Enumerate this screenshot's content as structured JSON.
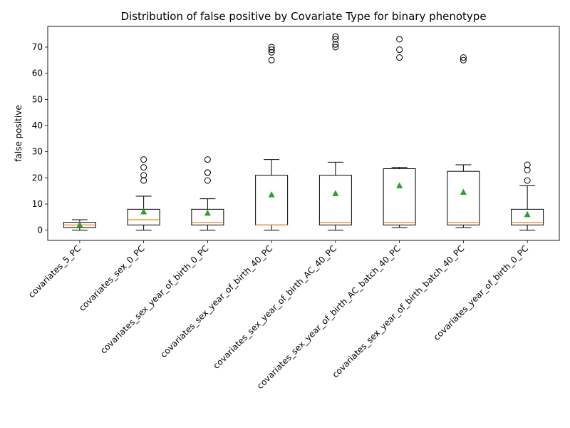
{
  "chart_data": {
    "type": "box",
    "title": "Distribution of false positive by Covariate Type for binary phenotype",
    "xlabel": "",
    "ylabel": "false positive",
    "ylim": [
      -3.9,
      77.9
    ],
    "yticks": [
      0,
      10,
      20,
      30,
      40,
      50,
      60,
      70
    ],
    "grid": false,
    "colors": {
      "box": "#000000",
      "median": "#ff7f0e",
      "mean": "#2ca02c",
      "flier": "#000000"
    },
    "categories": [
      "covariates_5_PC",
      "covariates_sex_0_PC",
      "covariates_sex_year_of_birth_0_PC",
      "covariates_sex_year_of_birth_40_PC",
      "covariates_sex_year_of_birth_AC_40_PC",
      "covariates_sex_year_of_birth_AC_batch_40_PC",
      "covariates_sex_year_of_birth_batch_40_PC",
      "covariates_year_of_birth_0_PC"
    ],
    "boxes": [
      {
        "whisker_low": 0,
        "q1": 1,
        "median": 2,
        "q3": 3,
        "whisker_high": 4,
        "mean": 2,
        "fliers": []
      },
      {
        "whisker_low": 0,
        "q1": 2,
        "median": 4,
        "q3": 8,
        "whisker_high": 13,
        "mean": 7,
        "fliers": [
          19,
          21,
          24,
          27
        ]
      },
      {
        "whisker_low": 0,
        "q1": 2,
        "median": 3,
        "q3": 8,
        "whisker_high": 12,
        "mean": 6.5,
        "fliers": [
          19,
          22,
          22,
          27
        ]
      },
      {
        "whisker_low": 0,
        "q1": 2,
        "median": 2,
        "q3": 21,
        "whisker_high": 27,
        "mean": 13.5,
        "fliers": [
          65,
          68,
          69,
          70
        ]
      },
      {
        "whisker_low": 0,
        "q1": 2,
        "median": 3,
        "q3": 21,
        "whisker_high": 26,
        "mean": 14,
        "fliers": [
          70,
          71,
          73,
          74
        ]
      },
      {
        "whisker_low": 1,
        "q1": 2,
        "median": 3,
        "q3": 23.5,
        "whisker_high": 24,
        "mean": 17,
        "fliers": [
          66,
          69,
          73
        ]
      },
      {
        "whisker_low": 1,
        "q1": 2,
        "median": 3,
        "q3": 22.5,
        "whisker_high": 25,
        "mean": 14.5,
        "fliers": [
          65,
          66
        ]
      },
      {
        "whisker_low": 0,
        "q1": 2,
        "median": 3,
        "q3": 8,
        "whisker_high": 17,
        "mean": 6,
        "fliers": [
          19,
          23,
          25
        ]
      }
    ]
  }
}
